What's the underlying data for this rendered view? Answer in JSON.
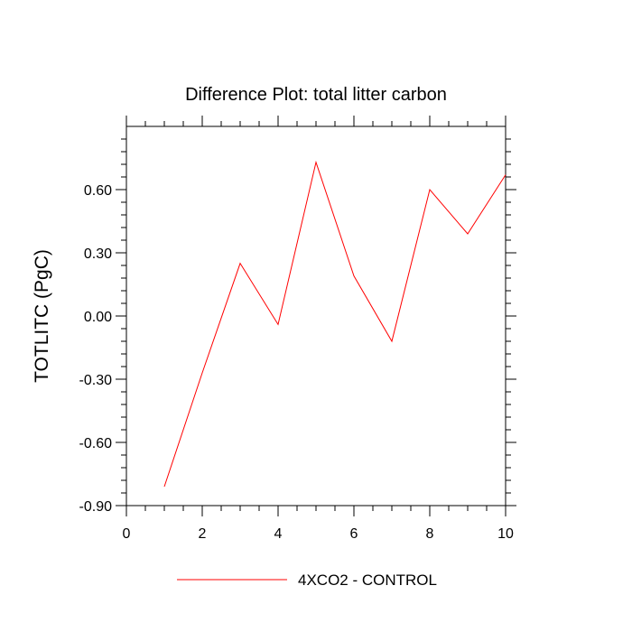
{
  "chart_data": {
    "type": "line",
    "title": "Difference Plot: total litter carbon",
    "xlabel": "",
    "ylabel": "TOTLITC  (PgC)",
    "xlim": [
      0,
      10
    ],
    "ylim": [
      -0.9,
      0.9
    ],
    "xticks": [
      0,
      2,
      4,
      6,
      8,
      10
    ],
    "xtick_labels": [
      "0",
      "2",
      "4",
      "6",
      "8",
      "10"
    ],
    "yticks": [
      -0.9,
      -0.6,
      -0.3,
      0.0,
      0.3,
      0.6
    ],
    "ytick_labels": [
      "-0.90",
      "-0.60",
      "-0.30",
      "0.00",
      "0.30",
      "0.60"
    ],
    "grid": false,
    "legend_position": "bottom-center",
    "series": [
      {
        "name": "4XCO2 - CONTROL",
        "color": "#ff0000",
        "x": [
          1,
          2,
          3,
          4,
          5,
          6,
          7,
          8,
          9,
          10
        ],
        "y": [
          -0.81,
          -0.27,
          0.25,
          -0.04,
          0.73,
          0.19,
          -0.12,
          0.6,
          0.39,
          0.67
        ]
      }
    ]
  }
}
